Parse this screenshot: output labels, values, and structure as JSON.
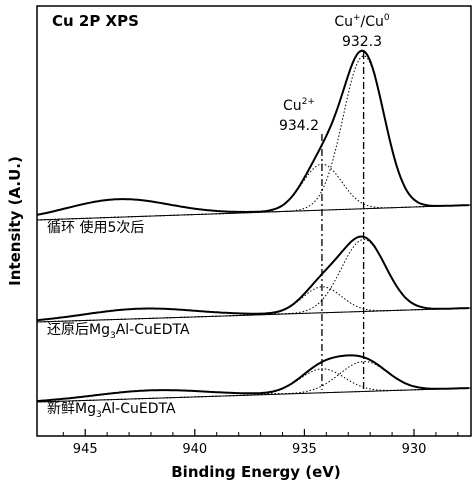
{
  "chart_data": {
    "type": "line",
    "title": "Cu 2P XPS",
    "xlabel": "Binding Energy (eV)",
    "ylabel": "Intensity (A.U.)",
    "xlim": [
      947.2,
      927.4
    ],
    "x_reversed": true,
    "x_ticks": [
      945,
      940,
      935,
      930
    ],
    "y_ticks_shown": false,
    "grid": false,
    "annotations": [
      {
        "label_main": "Cu",
        "label_sup": "2+",
        "value": "934.2",
        "x": 934.2
      },
      {
        "label_main": "Cu",
        "label_sup": "+",
        "label_mid": "/Cu",
        "label_sup2": "0",
        "value": "932.3",
        "x": 932.3
      }
    ],
    "series": [
      {
        "name": "循环  使用5次后",
        "label_segments": [
          "循环  使用5次后"
        ],
        "components": [
          {
            "center": 932.3,
            "height": 153,
            "fwhm": 2.2,
            "role": "Cu+/Cu0"
          },
          {
            "center": 934.2,
            "height": 46,
            "fwhm": 2.1,
            "role": "Cu2+"
          },
          {
            "center": 943.5,
            "height": 18,
            "fwhm": 5.5,
            "role": "satellite"
          }
        ]
      },
      {
        "name": "还原后Mg3Al-CuEDTA",
        "label_segments": [
          "还原后Mg",
          "3",
          "Al-CuEDTA"
        ],
        "components": [
          {
            "center": 932.3,
            "height": 72,
            "fwhm": 2.4,
            "role": "Cu+/Cu0"
          },
          {
            "center": 934.2,
            "height": 26,
            "fwhm": 2.1,
            "role": "Cu2+"
          },
          {
            "center": 942.5,
            "height": 10,
            "fwhm": 6.0,
            "role": "satellite"
          }
        ]
      },
      {
        "name": "新鲜Mg3Al-CuEDTA",
        "label_segments": [
          "新鲜Mg",
          "3",
          "Al-CuEDTA"
        ],
        "components": [
          {
            "center": 932.3,
            "height": 30,
            "fwhm": 2.6,
            "role": "Cu+/Cu0"
          },
          {
            "center": 934.2,
            "height": 24,
            "fwhm": 2.4,
            "role": "Cu2+"
          },
          {
            "center": 942.0,
            "height": 8,
            "fwhm": 6.0,
            "role": "satellite"
          }
        ]
      }
    ]
  }
}
